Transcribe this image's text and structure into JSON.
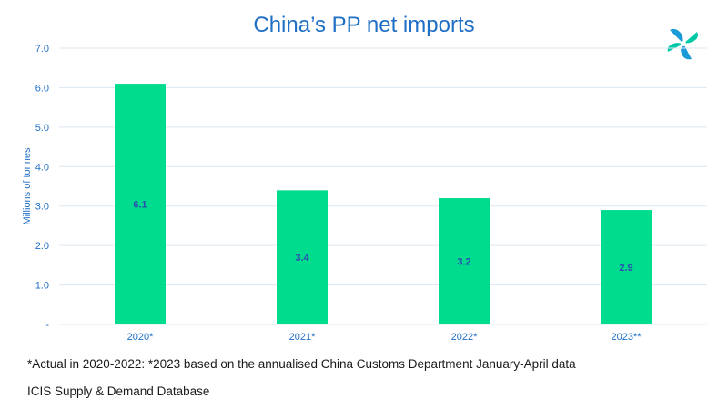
{
  "title": "China’s PP net imports",
  "footnote": "*Actual in 2020-2022: *2023 based on the annualised China Customs Department January-April data",
  "source": "ICIS Supply & Demand Database",
  "logo": "icis-logo-icon",
  "colors": {
    "bar": "#00dc8e",
    "title": "#1f6fc5",
    "axis_text": "#1f6fc5",
    "data_label": "#2a4fb0",
    "grid": "#dde7f2"
  },
  "chart_data": {
    "type": "bar",
    "categories": [
      "2020*",
      "2021*",
      "2022*",
      "2023**"
    ],
    "values": [
      6.1,
      3.4,
      3.2,
      2.9
    ],
    "data_labels": [
      "6.1",
      "3.4",
      "3.2",
      "2.9"
    ],
    "title": "China’s PP net imports",
    "xlabel": "",
    "ylabel": "Millions of tonnes",
    "ylim": [
      0,
      7
    ],
    "yticks": [
      0,
      1,
      2,
      3,
      4,
      5,
      6,
      7
    ],
    "ytick_labels": [
      "-",
      "1.0",
      "2.0",
      "3.0",
      "4.0",
      "5.0",
      "6.0",
      "7.0"
    ],
    "grid": true,
    "legend": "none"
  }
}
